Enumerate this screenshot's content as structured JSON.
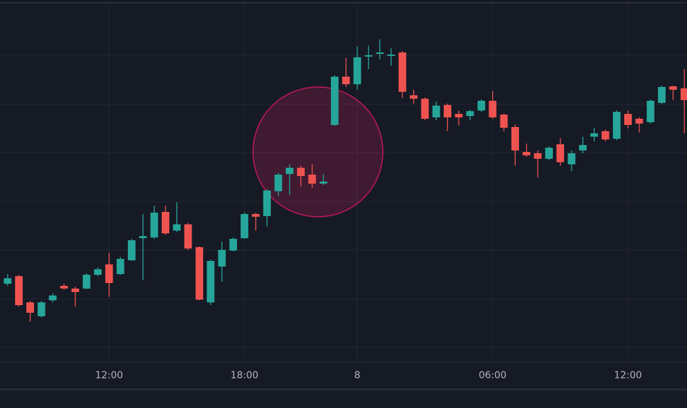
{
  "chart_data": {
    "type": "candlestick",
    "categories": [
      null,
      null,
      null,
      null,
      null,
      null,
      null,
      null,
      null,
      "12:00",
      null,
      null,
      null,
      null,
      null,
      null,
      null,
      null,
      null,
      null,
      null,
      "18:00",
      null,
      null,
      null,
      null,
      null,
      null,
      null,
      null,
      null,
      "8",
      null,
      null,
      null,
      null,
      null,
      null,
      null,
      null,
      null,
      null,
      null,
      "06:00",
      null,
      null,
      null,
      null,
      null,
      null,
      null,
      null,
      null,
      null,
      null,
      "12:00",
      null,
      null,
      null,
      null,
      null
    ],
    "open": [
      114,
      125,
      87,
      67,
      90,
      111,
      107,
      107,
      127,
      142,
      128,
      148,
      180,
      181,
      218,
      191,
      200,
      167,
      87,
      139,
      162,
      180,
      215,
      212,
      248,
      273,
      282,
      272,
      259,
      344,
      414,
      403,
      443,
      447,
      444,
      449,
      387,
      382,
      355,
      373,
      360,
      357,
      365,
      379,
      359,
      341,
      305,
      303,
      295,
      316,
      287,
      307,
      327,
      335,
      324,
      360,
      353,
      348,
      376,
      400,
      397
    ],
    "high": [
      128,
      127,
      89,
      89,
      100,
      114,
      110,
      129,
      138,
      159,
      153,
      179,
      215,
      227,
      227,
      232,
      202,
      168,
      149,
      175,
      181,
      217,
      217,
      251,
      275,
      287,
      285,
      287,
      273,
      416,
      441,
      458,
      459,
      468,
      455,
      451,
      395,
      384,
      378,
      375,
      365,
      366,
      381,
      393,
      361,
      345,
      317,
      307,
      313,
      325,
      307,
      327,
      340,
      337,
      365,
      365,
      355,
      381,
      401,
      401,
      425
    ],
    "low": [
      111,
      81,
      59,
      65,
      87,
      105,
      81,
      106,
      125,
      95,
      127,
      147,
      119,
      179,
      185,
      189,
      163,
      90,
      83,
      117,
      161,
      179,
      191,
      197,
      241,
      243,
      255,
      253,
      257,
      343,
      399,
      395,
      425,
      439,
      430,
      383,
      375,
      351,
      351,
      335,
      343,
      351,
      363,
      353,
      335,
      285,
      298,
      268,
      293,
      285,
      277,
      303,
      320,
      320,
      322,
      339,
      333,
      346,
      374,
      380,
      332
    ],
    "close": [
      122,
      83,
      72,
      87,
      97,
      107,
      102,
      127,
      135,
      115,
      150,
      177,
      183,
      217,
      187,
      200,
      165,
      91,
      147,
      163,
      179,
      215,
      211,
      249,
      272,
      282,
      270,
      259,
      262,
      414,
      403,
      442,
      445,
      449,
      446,
      392,
      382,
      353,
      372,
      355,
      355,
      364,
      379,
      355,
      340,
      307,
      300,
      295,
      311,
      290,
      303,
      315,
      332,
      323,
      363,
      344,
      346,
      379,
      399,
      395,
      380
    ],
    "up_color": "#26a69a",
    "down_color": "#ef5350",
    "ylim": [
      0,
      520
    ],
    "yticks": [
      22,
      92,
      163,
      233,
      304,
      374,
      445
    ],
    "grid": true
  }
}
